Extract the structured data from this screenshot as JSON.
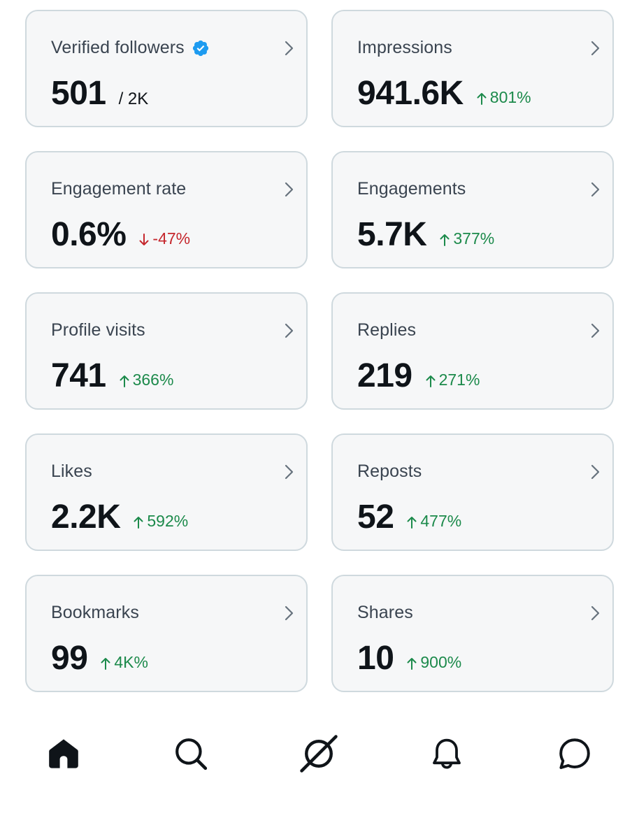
{
  "cards": [
    {
      "label": "Verified followers",
      "value": "501",
      "sub": "/ 2K",
      "verified": true
    },
    {
      "label": "Impressions",
      "value": "941.6K",
      "delta": "801%",
      "dir": "up"
    },
    {
      "label": "Engagement rate",
      "value": "0.6%",
      "delta": "-47%",
      "dir": "down"
    },
    {
      "label": "Engagements",
      "value": "5.7K",
      "delta": "377%",
      "dir": "up"
    },
    {
      "label": "Profile visits",
      "value": "741",
      "delta": "366%",
      "dir": "up"
    },
    {
      "label": "Replies",
      "value": "219",
      "delta": "271%",
      "dir": "up"
    },
    {
      "label": "Likes",
      "value": "2.2K",
      "delta": "592%",
      "dir": "up"
    },
    {
      "label": "Reposts",
      "value": "52",
      "delta": "477%",
      "dir": "up"
    },
    {
      "label": "Bookmarks",
      "value": "99",
      "delta": "4K%",
      "dir": "up"
    },
    {
      "label": "Shares",
      "value": "10",
      "delta": "900%",
      "dir": "up"
    }
  ],
  "nav": {
    "items": [
      "home-icon",
      "search-icon",
      "grok-icon",
      "notifications-icon",
      "messages-icon"
    ]
  },
  "colors": {
    "up": "#1c8a4b",
    "down": "#c5272d",
    "verified": "#1d9bf0"
  }
}
